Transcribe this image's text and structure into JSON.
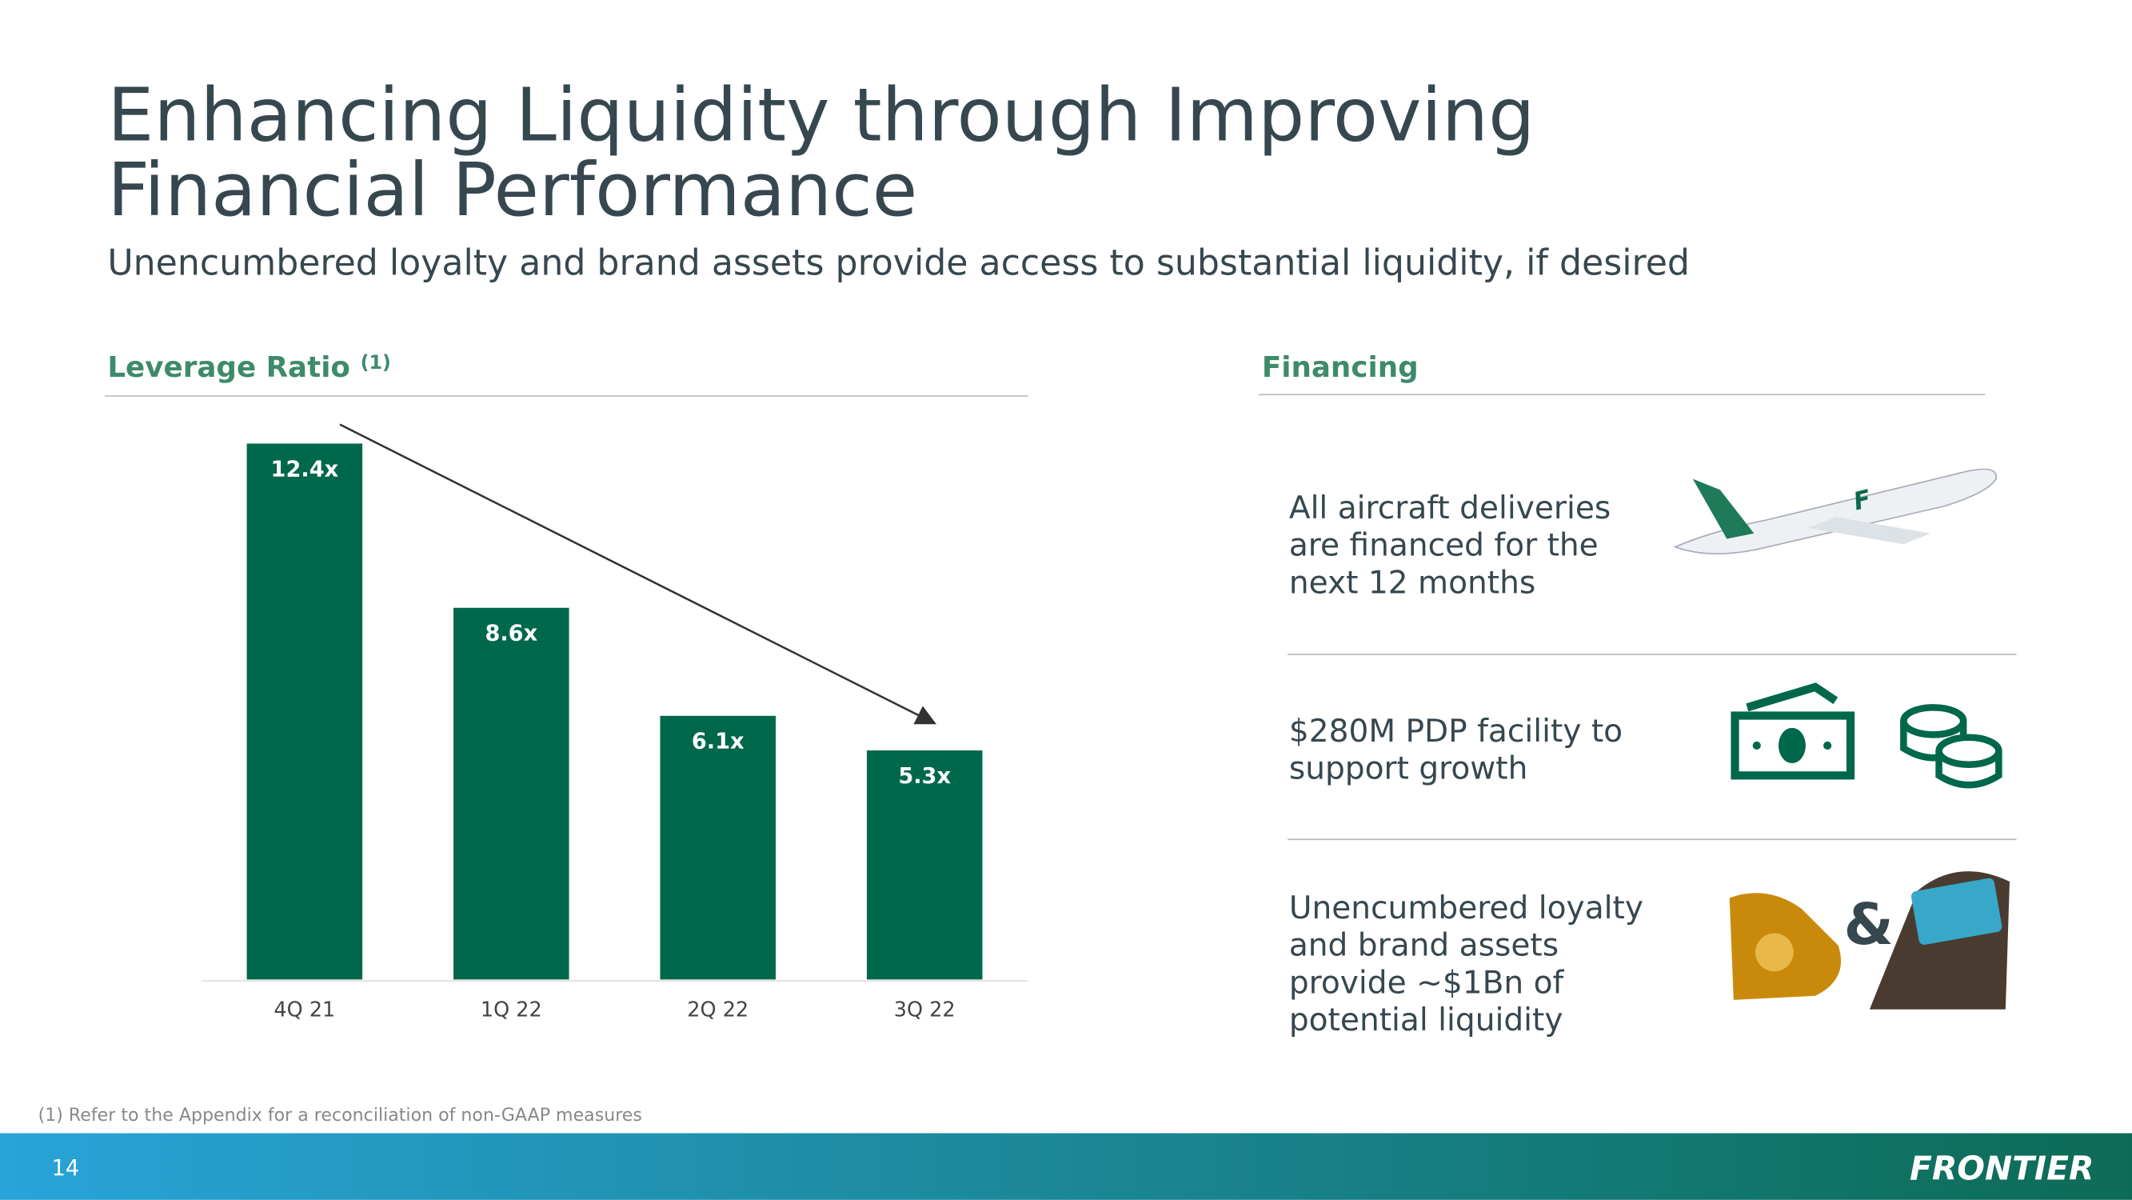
{
  "title_lines": [
    "Enhancing Liquidity through Improving",
    "Financial Performance"
  ],
  "subtitle": "Unencumbered loyalty and brand assets provide access to substantial liquidity, if desired",
  "chart_data": {
    "type": "bar",
    "title": "Leverage Ratio",
    "title_note": "(1)",
    "categories": [
      "4Q 21",
      "1Q 22",
      "2Q 22",
      "3Q 22"
    ],
    "values": [
      12.4,
      8.6,
      6.1,
      5.3
    ],
    "value_labels": [
      "12.4x",
      "8.6x",
      "6.1x",
      "5.3x"
    ],
    "color": "#00684a"
  },
  "financing": {
    "title": "Financing",
    "items": [
      {
        "lines": [
          "All aircraft deliveries",
          "are financed for the",
          "next 12 months"
        ]
      },
      {
        "lines": [
          "$280M PDP facility to",
          "support growth"
        ]
      },
      {
        "lines": [
          "Unencumbered loyalty",
          "and brand assets",
          "provide ~$1Bn of",
          "potential liquidity"
        ]
      }
    ]
  },
  "footnote": "(1) Refer to the Appendix for a reconciliation of non-GAAP measures",
  "page_number": "14",
  "logo": "FRONTIER"
}
